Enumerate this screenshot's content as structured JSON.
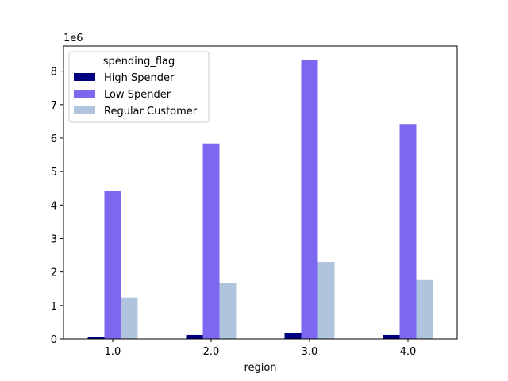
{
  "chart_data": {
    "type": "bar",
    "xlabel": "region",
    "ylabel": "",
    "offset_label": "1e6",
    "categories": [
      "1.0",
      "2.0",
      "3.0",
      "4.0"
    ],
    "ylim": [
      0,
      8750000
    ],
    "yticks": [
      0,
      1,
      2,
      3,
      4,
      5,
      6,
      7,
      8
    ],
    "grid": false,
    "legend": {
      "title": "spending_flag",
      "position": "top-left"
    },
    "series": [
      {
        "name": "High Spender",
        "color": "#000080",
        "values": [
          70000,
          120000,
          180000,
          120000
        ]
      },
      {
        "name": "Low Spender",
        "color": "#7b68ee",
        "values": [
          4420000,
          5840000,
          8340000,
          6420000
        ]
      },
      {
        "name": "Regular Customer",
        "color": "#b0c4de",
        "values": [
          1240000,
          1660000,
          2300000,
          1760000
        ]
      }
    ]
  }
}
